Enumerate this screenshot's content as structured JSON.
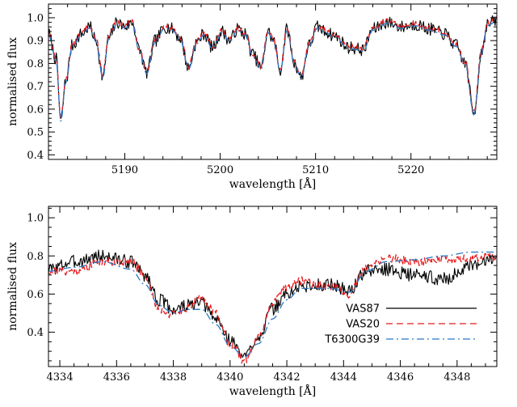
{
  "chart_data": [
    {
      "type": "line",
      "xlabel": "wavelength [Å]",
      "ylabel": "normalised flux",
      "xlim": [
        5182,
        5229
      ],
      "ylim": [
        0.38,
        1.06
      ],
      "xticks": [
        5190,
        5200,
        5210,
        5220
      ],
      "yticks": [
        0.4,
        0.5,
        0.6,
        0.7,
        0.8,
        0.9,
        1.0
      ],
      "ytick_labels": [
        "0.4",
        "0.5",
        "0.6",
        "0.7",
        "0.8",
        "0.9",
        "1.0"
      ],
      "grid": false,
      "continuum_model": [
        [
          5182,
          0.93
        ],
        [
          5182.8,
          0.82
        ],
        [
          5183.3,
          0.55
        ],
        [
          5183.8,
          0.72
        ],
        [
          5184.5,
          0.88
        ],
        [
          5185.5,
          0.93
        ],
        [
          5186.3,
          0.96
        ],
        [
          5187,
          0.9
        ],
        [
          5187.7,
          0.74
        ],
        [
          5188.3,
          0.91
        ],
        [
          5189.2,
          0.98
        ],
        [
          5190,
          0.96
        ],
        [
          5190.8,
          0.98
        ],
        [
          5191.5,
          0.86
        ],
        [
          5192.3,
          0.76
        ],
        [
          5193.2,
          0.9
        ],
        [
          5194.2,
          0.96
        ],
        [
          5195,
          0.95
        ],
        [
          5195.8,
          0.91
        ],
        [
          5196.7,
          0.78
        ],
        [
          5197.5,
          0.89
        ],
        [
          5198.3,
          0.93
        ],
        [
          5199.2,
          0.87
        ],
        [
          5200.2,
          0.94
        ],
        [
          5201,
          0.9
        ],
        [
          5201.8,
          0.95
        ],
        [
          5202.6,
          0.93
        ],
        [
          5203.4,
          0.84
        ],
        [
          5204.3,
          0.78
        ],
        [
          5205,
          0.94
        ],
        [
          5205.6,
          0.9
        ],
        [
          5206.3,
          0.77
        ],
        [
          5207,
          0.95
        ],
        [
          5207.8,
          0.8
        ],
        [
          5208.5,
          0.74
        ],
        [
          5209.3,
          0.88
        ],
        [
          5210.2,
          0.96
        ],
        [
          5211,
          0.94
        ],
        [
          5212,
          0.92
        ],
        [
          5213.5,
          0.87
        ],
        [
          5215,
          0.86
        ],
        [
          5216,
          0.95
        ],
        [
          5217.5,
          0.98
        ],
        [
          5219,
          0.96
        ],
        [
          5220.5,
          0.97
        ],
        [
          5222,
          0.95
        ],
        [
          5223.5,
          0.93
        ],
        [
          5224.7,
          0.88
        ],
        [
          5225.7,
          0.8
        ],
        [
          5226.6,
          0.58
        ],
        [
          5227.4,
          0.85
        ],
        [
          5228,
          0.97
        ],
        [
          5229,
          0.99
        ]
      ],
      "series": [
        {
          "name": "VAS87",
          "style": "solid",
          "color": "#000000",
          "noise": 0.028,
          "seed": 7,
          "offset": 0.0
        },
        {
          "name": "VAS20",
          "style": "dashed",
          "color": "#e8191b",
          "noise": 0.012,
          "seed": 13,
          "offset": 0.005
        },
        {
          "name": "T6300G39",
          "style": "dashdot",
          "color": "#2a78c8",
          "noise": 0.0,
          "seed": 0,
          "offset": -0.005
        }
      ]
    },
    {
      "type": "line",
      "xlabel": "wavelength [Å]",
      "ylabel": "normalised flux",
      "xlim": [
        4333.6,
        4349.4
      ],
      "ylim": [
        0.22,
        1.06
      ],
      "xticks": [
        4334,
        4336,
        4338,
        4340,
        4342,
        4344,
        4346,
        4348
      ],
      "yticks": [
        0.4,
        0.6,
        0.8,
        1.0
      ],
      "ytick_labels": [
        "0.4",
        "0.6",
        "0.8",
        "1.0"
      ],
      "grid": false,
      "legend_position": "bottom-right",
      "series": [
        {
          "name": "VAS87",
          "style": "solid",
          "color": "#000000",
          "noise": 0.035,
          "seed": 3,
          "points": [
            [
              4333.6,
              0.73
            ],
            [
              4334.5,
              0.77
            ],
            [
              4335.5,
              0.8
            ],
            [
              4336.5,
              0.77
            ],
            [
              4337,
              0.7
            ],
            [
              4337.5,
              0.57
            ],
            [
              4338,
              0.52
            ],
            [
              4338.5,
              0.54
            ],
            [
              4339,
              0.55
            ],
            [
              4339.5,
              0.47
            ],
            [
              4340,
              0.36
            ],
            [
              4340.5,
              0.27
            ],
            [
              4341,
              0.38
            ],
            [
              4341.5,
              0.52
            ],
            [
              4342,
              0.6
            ],
            [
              4342.5,
              0.64
            ],
            [
              4343.5,
              0.65
            ],
            [
              4344.2,
              0.62
            ],
            [
              4344.8,
              0.72
            ],
            [
              4345.5,
              0.73
            ],
            [
              4346.5,
              0.7
            ],
            [
              4347.5,
              0.68
            ],
            [
              4348.5,
              0.74
            ],
            [
              4349.4,
              0.8
            ]
          ]
        },
        {
          "name": "VAS20",
          "style": "dashed",
          "color": "#e8191b",
          "noise": 0.022,
          "seed": 21,
          "points": [
            [
              4333.6,
              0.72
            ],
            [
              4334.5,
              0.72
            ],
            [
              4335.5,
              0.77
            ],
            [
              4336.5,
              0.77
            ],
            [
              4337,
              0.7
            ],
            [
              4337.5,
              0.52
            ],
            [
              4338,
              0.49
            ],
            [
              4338.5,
              0.53
            ],
            [
              4339,
              0.58
            ],
            [
              4339.5,
              0.5
            ],
            [
              4340,
              0.34
            ],
            [
              4340.5,
              0.25
            ],
            [
              4341,
              0.37
            ],
            [
              4341.5,
              0.55
            ],
            [
              4342,
              0.64
            ],
            [
              4342.5,
              0.67
            ],
            [
              4343.5,
              0.64
            ],
            [
              4344.2,
              0.6
            ],
            [
              4344.8,
              0.74
            ],
            [
              4345.5,
              0.79
            ],
            [
              4346.5,
              0.77
            ],
            [
              4347.5,
              0.78
            ],
            [
              4348.5,
              0.79
            ],
            [
              4349.4,
              0.8
            ]
          ]
        },
        {
          "name": "T6300G39",
          "style": "dashdot",
          "color": "#2a78c8",
          "noise": 0.0,
          "seed": 0,
          "points": [
            [
              4333.6,
              0.72
            ],
            [
              4334.5,
              0.74
            ],
            [
              4335.5,
              0.77
            ],
            [
              4336.5,
              0.73
            ],
            [
              4337,
              0.65
            ],
            [
              4337.5,
              0.54
            ],
            [
              4338,
              0.5
            ],
            [
              4338.5,
              0.52
            ],
            [
              4339,
              0.52
            ],
            [
              4339.5,
              0.44
            ],
            [
              4340,
              0.33
            ],
            [
              4340.5,
              0.27
            ],
            [
              4341,
              0.34
            ],
            [
              4341.5,
              0.47
            ],
            [
              4342,
              0.57
            ],
            [
              4342.5,
              0.63
            ],
            [
              4343.5,
              0.63
            ],
            [
              4344.2,
              0.61
            ],
            [
              4344.8,
              0.72
            ],
            [
              4345.5,
              0.77
            ],
            [
              4346.5,
              0.78
            ],
            [
              4347.5,
              0.8
            ],
            [
              4348.5,
              0.82
            ],
            [
              4349.4,
              0.82
            ]
          ]
        }
      ]
    }
  ]
}
